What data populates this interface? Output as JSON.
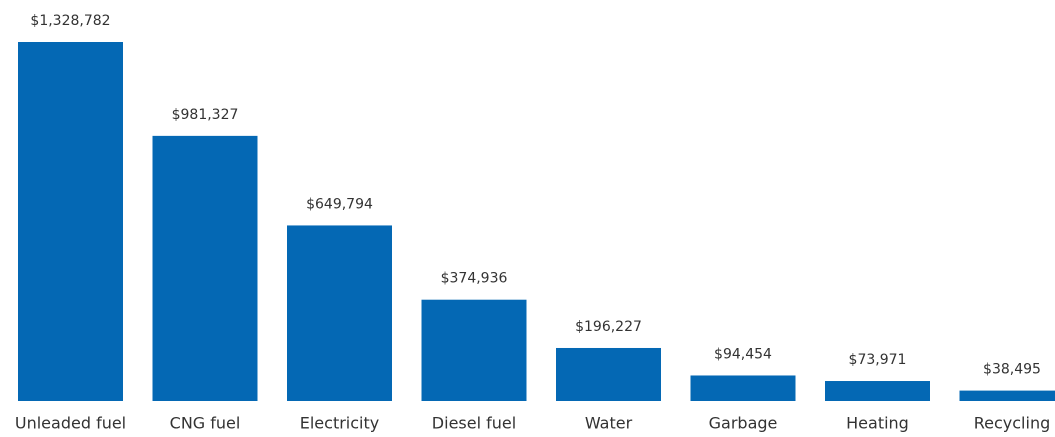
{
  "chart_data": {
    "type": "bar",
    "categories": [
      "Unleaded fuel",
      "CNG fuel",
      "Electricity",
      "Diesel fuel",
      "Water",
      "Garbage",
      "Heating",
      "Recycling"
    ],
    "values": [
      1328782,
      981327,
      649794,
      374936,
      196227,
      94454,
      73971,
      38495
    ],
    "value_labels": [
      "$1,328,782",
      "$981,327",
      "$649,794",
      "$374,936",
      "$196,227",
      "$94,454",
      "$73,971",
      "$38,495"
    ],
    "color": "#0468b4"
  }
}
